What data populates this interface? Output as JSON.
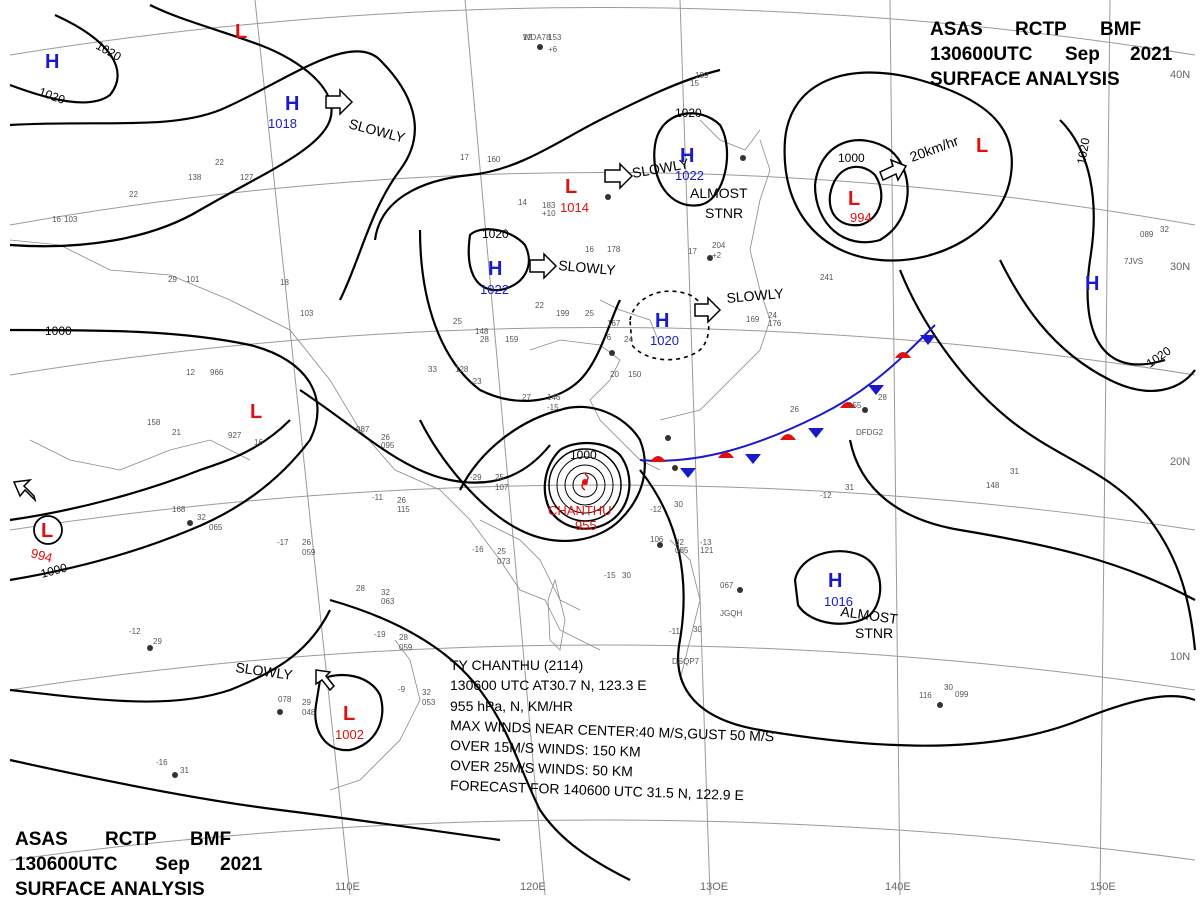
{
  "header_top": {
    "line1": [
      "ASAS",
      "RCTP",
      "BMF"
    ],
    "line2": [
      "130600UTC",
      "Sep",
      "2021"
    ],
    "line3": "SURFACE ANALYSIS"
  },
  "header_bottom": {
    "line1": [
      "ASAS",
      "RCTP",
      "BMF"
    ],
    "line2": [
      "130600UTC",
      "Sep",
      "2021"
    ],
    "line3": "SURFACE ANALYSIS"
  },
  "grid_labels": {
    "lon": [
      "110E",
      "120E",
      "13OE",
      "140E",
      "150E"
    ],
    "lat": [
      "40N",
      "30N",
      "20N",
      "10N"
    ]
  },
  "isobar_labels": [
    "1020",
    "1020",
    "1000",
    "1000",
    "1020",
    "1020",
    "1000",
    "1020",
    "1000",
    "1020",
    "1020"
  ],
  "pressure_systems": [
    {
      "type": "H",
      "id": "h-nw-corner",
      "value": ""
    },
    {
      "type": "L",
      "id": "l-top",
      "value": ""
    },
    {
      "type": "H",
      "id": "h-mongolia",
      "value": "1018",
      "move": "SLOWLY"
    },
    {
      "type": "L",
      "id": "l-north-china",
      "value": "1014",
      "move": "SLOWLY"
    },
    {
      "type": "H",
      "id": "h-manchuria",
      "value": "1022",
      "move": "ALMOST STNR"
    },
    {
      "type": "H",
      "id": "h-north-china",
      "value": "1022",
      "move": "SLOWLY"
    },
    {
      "type": "H",
      "id": "h-yellow-sea",
      "value": "1020",
      "move": "SLOWLY"
    },
    {
      "type": "L",
      "id": "l-okhotsk",
      "value": "994",
      "move": "20km/hr"
    },
    {
      "type": "L",
      "id": "l-okhotsk-2",
      "value": ""
    },
    {
      "type": "H",
      "id": "h-pacific",
      "value": ""
    },
    {
      "type": "L",
      "id": "l-tibet",
      "value": ""
    },
    {
      "type": "L",
      "id": "l-india",
      "value": "994"
    },
    {
      "type": "H",
      "id": "h-west-pacific",
      "value": "1016",
      "move": "ALMOST STNR"
    },
    {
      "type": "L",
      "id": "l-south-china-sea",
      "value": "1002",
      "move": "SLOWLY"
    }
  ],
  "typhoon": {
    "name": "CHANTHU",
    "pressure": "955",
    "info_lines": [
      "TY  CHANTHU  (2114)",
      "130600 UTC  AT30.7 N, 123.3 E",
      "955 hPa, N, KM/HR",
      "MAX WINDS NEAR CENTER:40 M/S,GUST 50 M/S",
      "OVER 15M/S WINDS: 150 KM",
      "OVER 25M/S WINDS: 50 KM",
      "FORECAST FOR 140600 UTC 31.5 N, 122.9 E"
    ]
  },
  "station_plots": [
    "12",
    "153",
    "+6",
    "15",
    "189",
    "17",
    "160",
    "14",
    "183",
    "+10",
    "16",
    "178",
    "17",
    "204",
    "+2",
    "22",
    "138",
    "22",
    "127",
    "16",
    "103",
    "29",
    "101",
    "18",
    "103",
    "25",
    "148",
    "28",
    "159",
    "22",
    "199",
    "25",
    "167",
    "-6",
    "24",
    "169",
    "24",
    "176",
    "12",
    "966",
    "33",
    "128",
    "-23",
    "27",
    "146",
    "-15",
    "20",
    "150",
    "26",
    "155",
    "28",
    "158",
    "21",
    "927",
    "16",
    "987",
    "26",
    "095",
    "-29",
    "25",
    "107",
    "-11",
    "26",
    "115",
    "-12",
    "30",
    "106",
    "32",
    "085",
    "-13",
    "121",
    "-12",
    "31",
    "148",
    "31",
    "168",
    "32",
    "065",
    "-17",
    "26",
    "059",
    "-16",
    "25",
    "073",
    "-15",
    "30",
    "067",
    "28",
    "32",
    "063",
    "-19",
    "28",
    "059",
    "-12",
    "29",
    "078",
    "29",
    "048",
    "-9",
    "32",
    "053",
    "-11",
    "30",
    "116",
    "30",
    "099",
    "-16",
    "31",
    "089",
    "32",
    "241",
    "DFDG2",
    "JGQH",
    "DSQP7",
    "7JVS",
    "WDA78"
  ]
}
